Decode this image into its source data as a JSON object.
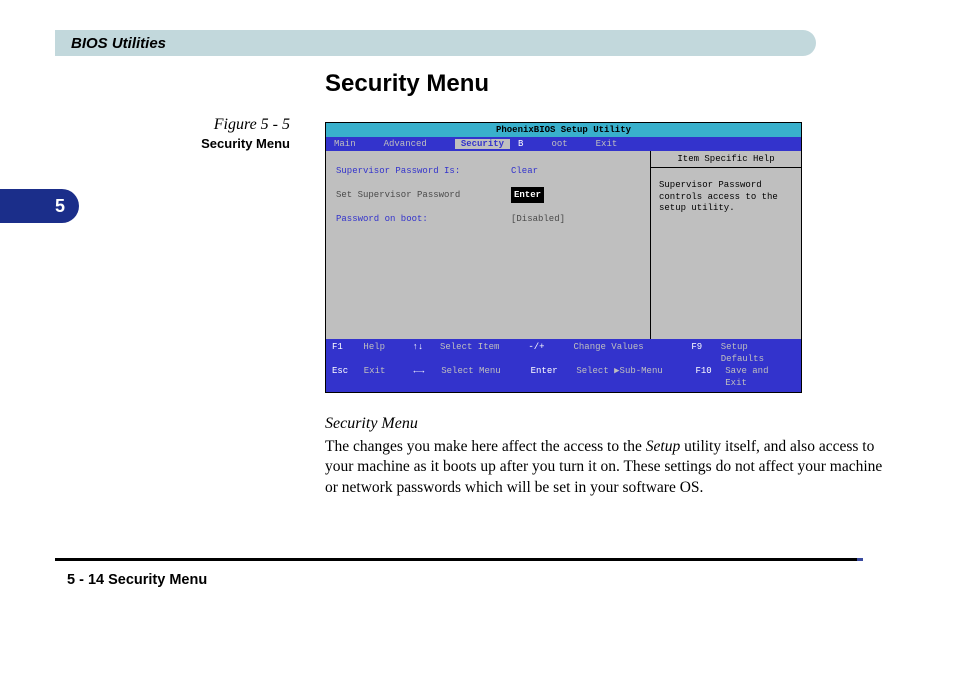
{
  "section_header": "BIOS Utilities",
  "chapter_tab": "5",
  "figure": {
    "number": "Figure 5 - 5",
    "title": "Security Menu"
  },
  "heading": "Security Menu",
  "bios": {
    "title": "PhoenixBIOS Setup Utility",
    "menu": {
      "items": [
        "Main",
        "Advanced",
        "Security",
        "Boot",
        "Exit"
      ],
      "selected": "Security"
    },
    "fields": {
      "supervisor_password_label": "Supervisor Password Is:",
      "supervisor_password_value": "Clear",
      "set_supervisor_label": "Set Supervisor Password",
      "set_supervisor_value": "[Enter]",
      "password_on_boot_label": "Password on boot:",
      "password_on_boot_value": "[Disabled]"
    },
    "help": {
      "title": "Item Specific Help",
      "body": "Supervisor Password controls access to the setup utility."
    },
    "footer": {
      "r1": {
        "k1": "F1",
        "l1": "Help",
        "k2": "↑↓",
        "l2": "Select Item",
        "k3": "-/+",
        "l3": "Change Values",
        "k4": "F9",
        "l4": "Setup Defaults"
      },
      "r2": {
        "k1": "Esc",
        "l1": "Exit",
        "k2": "←→",
        "l2": "Select Menu",
        "k3": "Enter",
        "l3_a": "Select ",
        "l3_b": "Sub-Menu",
        "k4": "F10",
        "l4": "Save and Exit"
      }
    },
    "colors": {
      "titlebar_bg": "#39b0cc",
      "menubar_bg": "#3333cc",
      "body_bg": "#bfbfbf",
      "text_blue": "#3333cc",
      "text_grey": "#4a4a4a"
    }
  },
  "caption": "Security Menu",
  "body_text_1": "The changes you make here affect the access to the ",
  "body_text_italic": "Setup",
  "body_text_2": " utility itself, and also access to your machine as it boots up after you turn it on. These settings do not affect your machine or network passwords which will be set in your software OS.",
  "page_footer": "5  -  14  Security Menu"
}
